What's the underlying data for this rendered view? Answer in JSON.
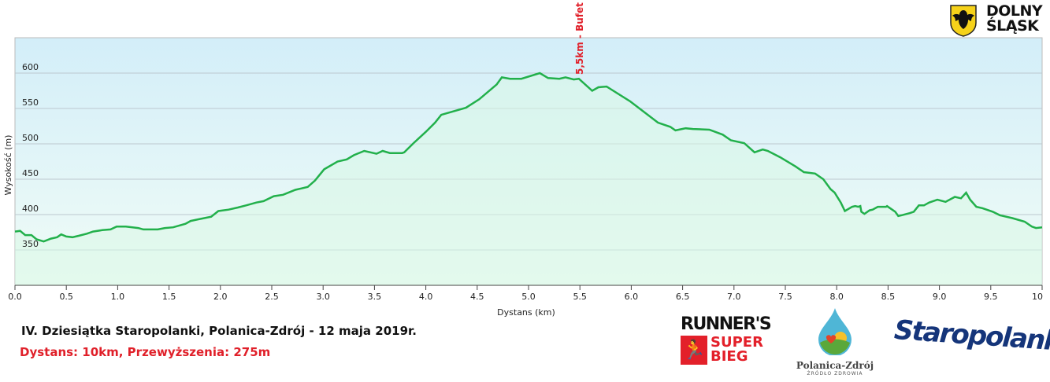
{
  "chart_data": {
    "type": "area",
    "xlabel": "Dystans  (km)",
    "ylabel": "Wysokość (m)",
    "xlim": [
      0,
      10
    ],
    "ylim": [
      300,
      650
    ],
    "x_ticks": [
      "0.0",
      "0.5",
      "1.0",
      "1.5",
      "2.0",
      "2.5",
      "3.0",
      "3.5",
      "4.0",
      "4.5",
      "5.0",
      "5.5",
      "6.0",
      "6.5",
      "7.0",
      "7.5",
      "8.0",
      "8.5",
      "9.0",
      "9.5",
      "10"
    ],
    "y_ticks": [
      "350",
      "400",
      "450",
      "500",
      "550",
      "600"
    ],
    "grid": "horizontal",
    "colors": {
      "line": "#22b04b",
      "fill": "#d9f7e6",
      "bg_top": "#d3eef9",
      "bg_bottom": "#f0fcf6",
      "annotation": "#e0202a"
    },
    "annotation": {
      "x": 5.5,
      "text": "5,5km - Bufet"
    },
    "x": [
      0,
      0.05,
      0.1,
      0.16,
      0.21,
      0.28,
      0.35,
      0.41,
      0.45,
      0.5,
      0.56,
      0.62,
      0.7,
      0.76,
      0.85,
      0.93,
      0.99,
      1.08,
      1.2,
      1.25,
      1.39,
      1.46,
      1.54,
      1.66,
      1.71,
      1.81,
      1.91,
      1.98,
      2.08,
      2.17,
      2.25,
      2.35,
      2.42,
      2.52,
      2.61,
      2.73,
      2.85,
      2.92,
      3.01,
      3.14,
      3.23,
      3.3,
      3.4,
      3.52,
      3.58,
      3.65,
      3.77,
      3.79,
      3.88,
      4.0,
      4.09,
      4.15,
      4.39,
      4.52,
      4.69,
      4.74,
      4.82,
      4.93,
      5.11,
      5.19,
      5.3,
      5.36,
      5.44,
      5.49,
      5.62,
      5.68,
      5.76,
      5.99,
      6.26,
      6.38,
      6.43,
      6.53,
      6.6,
      6.76,
      6.89,
      6.97,
      7.1,
      7.2,
      7.28,
      7.33,
      7.45,
      7.6,
      7.68,
      7.79,
      7.87,
      7.94,
      7.98,
      8.04,
      8.08,
      8.15,
      8.18,
      8.21,
      8.23,
      8.24,
      8.27,
      8.32,
      8.35,
      8.4,
      8.48,
      8.49,
      8.54,
      8.57,
      8.6,
      8.63,
      8.71,
      8.75,
      8.8,
      8.85,
      8.9,
      8.98,
      9.06,
      9.15,
      9.21,
      9.26,
      9.3,
      9.36,
      9.42,
      9.52,
      9.59,
      9.71,
      9.83,
      9.9,
      9.94,
      10.0
    ],
    "y": [
      376,
      377,
      371,
      371,
      365,
      362,
      366,
      368,
      372,
      369,
      368,
      370,
      373,
      376,
      378,
      379,
      383,
      383,
      381,
      379,
      379,
      381,
      382,
      387,
      391,
      394,
      397,
      405,
      407,
      410,
      413,
      417,
      419,
      426,
      428,
      435,
      439,
      448,
      464,
      475,
      478,
      484,
      490,
      486,
      490,
      487,
      487,
      488,
      501,
      517,
      530,
      541,
      551,
      563,
      584,
      594,
      592,
      592,
      600,
      593,
      592,
      594,
      591,
      592,
      575,
      580,
      581,
      560,
      530,
      524,
      519,
      522,
      521,
      520,
      513,
      505,
      501,
      488,
      492,
      490,
      481,
      468,
      460,
      458,
      450,
      436,
      431,
      417,
      405,
      411,
      412,
      411,
      412,
      404,
      401,
      406,
      407,
      411,
      411,
      412,
      407,
      404,
      398,
      399,
      402,
      404,
      413,
      413,
      417,
      421,
      418,
      425,
      423,
      431,
      421,
      411,
      409,
      404,
      399,
      395,
      390,
      383,
      381,
      382
    ]
  },
  "footer": {
    "title": "IV. Dziesiątka Staropolanki, Polanica-Zdrój - 12 maja 2019r.",
    "subtitle": "Dystans: 10km, Przewyższenia: 275m"
  },
  "logos": {
    "dolny_slask": "DOLNY ŚLĄSK",
    "runners": "RUNNER'S",
    "super_bieg": "SUPER BIEG",
    "polanica": "Polanica-Zdrój",
    "polanica_sub": "ŹRÓDŁO ZDROWIA",
    "staropolanka": "Staropolanka"
  }
}
